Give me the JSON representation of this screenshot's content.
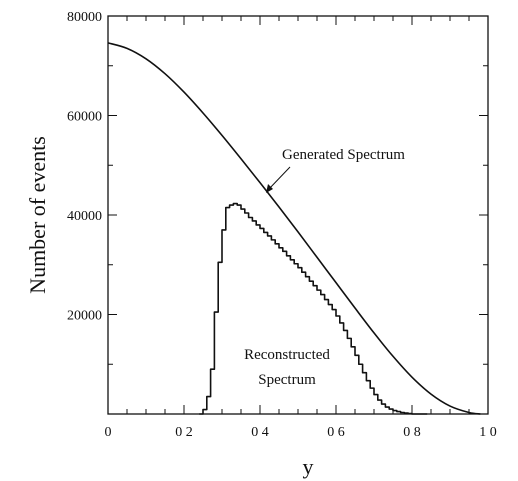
{
  "chart_data": {
    "type": "line",
    "title": "",
    "xlabel": "y",
    "ylabel": "Number of events",
    "xlim": [
      0,
      1.0
    ],
    "ylim": [
      0,
      80000
    ],
    "x_ticks": [
      {
        "value": 0,
        "label": "0"
      },
      {
        "value": 0.2,
        "label": "0 2"
      },
      {
        "value": 0.4,
        "label": "0 4"
      },
      {
        "value": 0.6,
        "label": "0 6"
      },
      {
        "value": 0.8,
        "label": "0 8"
      },
      {
        "value": 1.0,
        "label": "1 0"
      }
    ],
    "y_ticks": [
      {
        "value": 20000,
        "label": "20000"
      },
      {
        "value": 40000,
        "label": "40000"
      },
      {
        "value": 60000,
        "label": "60000"
      },
      {
        "value": 80000,
        "label": "80000"
      }
    ],
    "grid": false,
    "series": [
      {
        "style": "smooth",
        "x": [
          0,
          0.05,
          0.1,
          0.15,
          0.2,
          0.25,
          0.3,
          0.35,
          0.4,
          0.45,
          0.5,
          0.55,
          0.6,
          0.65,
          0.7,
          0.75,
          0.8,
          0.85,
          0.9,
          0.95,
          0.98
        ],
        "y": [
          74600,
          73500,
          71400,
          68400,
          64700,
          60500,
          56000,
          51300,
          46500,
          41600,
          36600,
          31500,
          26400,
          21300,
          16300,
          11600,
          7400,
          4000,
          1600,
          300,
          0
        ]
      },
      {
        "style": "step",
        "x": [
          0.24,
          0.25,
          0.26,
          0.27,
          0.28,
          0.29,
          0.3,
          0.31,
          0.32,
          0.33,
          0.34,
          0.35,
          0.36,
          0.37,
          0.38,
          0.39,
          0.4,
          0.41,
          0.42,
          0.43,
          0.44,
          0.45,
          0.46,
          0.47,
          0.48,
          0.49,
          0.5,
          0.51,
          0.52,
          0.53,
          0.54,
          0.55,
          0.56,
          0.57,
          0.58,
          0.59,
          0.6,
          0.61,
          0.62,
          0.63,
          0.64,
          0.65,
          0.66,
          0.67,
          0.68,
          0.69,
          0.7,
          0.71,
          0.72,
          0.73,
          0.74,
          0.75,
          0.76,
          0.77,
          0.78,
          0.79,
          0.8,
          0.81,
          0.82,
          0.83
        ],
        "y": [
          0,
          900,
          3500,
          9000,
          20500,
          30500,
          37000,
          41500,
          42000,
          42300,
          42000,
          41200,
          40400,
          39500,
          38800,
          38000,
          37300,
          36500,
          35800,
          35000,
          34200,
          33400,
          32700,
          31800,
          31000,
          30200,
          29400,
          28500,
          27600,
          26700,
          25800,
          24900,
          24000,
          23000,
          22000,
          21000,
          19700,
          18300,
          16800,
          15200,
          13500,
          11800,
          10000,
          8300,
          6700,
          5200,
          3900,
          2800,
          2000,
          1400,
          1000,
          700,
          500,
          300,
          200,
          100,
          0,
          0,
          0,
          0
        ]
      }
    ],
    "annotations": [
      {
        "text": "Generated Spectrum"
      },
      {
        "text": "Reconstructed"
      },
      {
        "text": "Spectrum"
      }
    ]
  }
}
